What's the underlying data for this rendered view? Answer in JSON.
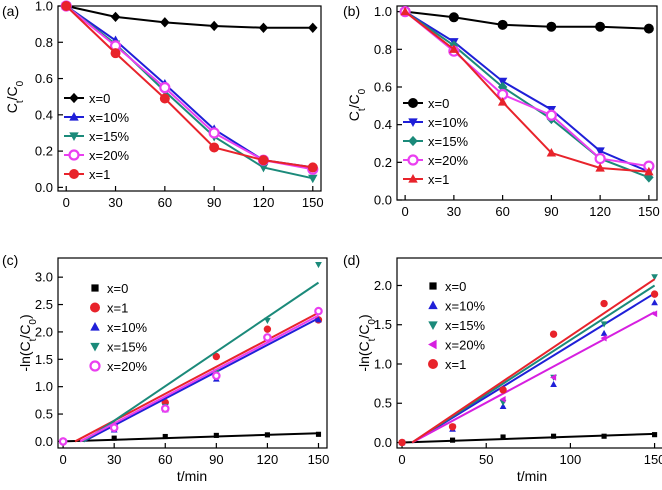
{
  "chart_data": [
    {
      "panel": "(a)",
      "type": "line",
      "x": [
        0,
        30,
        60,
        90,
        120,
        150
      ],
      "xlim": [
        -5,
        155
      ],
      "ylim": [
        -0.02,
        1.0
      ],
      "xticks": [
        "0",
        "30",
        "60",
        "90",
        "120",
        "150"
      ],
      "yticks": [
        "0.0",
        "0.2",
        "0.4",
        "0.6",
        "0.8",
        "1.0"
      ],
      "ytick_values": [
        0,
        0.2,
        0.4,
        0.6,
        0.8,
        1.0
      ],
      "ylabel": "C",
      "ylabel_sub1": "t",
      "ylabel_mid": "/C",
      "ylabel_sub2": "0",
      "xlabel": "",
      "legend_position": "lower-left",
      "series": [
        {
          "name": "x=0",
          "marker": "diamond",
          "color": "#000000",
          "values": [
            1.0,
            0.94,
            0.91,
            0.89,
            0.88,
            0.88
          ]
        },
        {
          "name": "x=10%",
          "marker": "triangle",
          "color": "#1f1fd8",
          "values": [
            1.0,
            0.81,
            0.57,
            0.32,
            0.15,
            0.11
          ]
        },
        {
          "name": "x=15%",
          "marker": "triangle-down",
          "color": "#1b8a7a",
          "values": [
            1.0,
            0.79,
            0.53,
            0.28,
            0.11,
            0.05
          ]
        },
        {
          "name": "x=20%",
          "marker": "circle-open",
          "color": "#ea3ff0",
          "values": [
            1.0,
            0.78,
            0.55,
            0.3,
            0.15,
            0.1
          ]
        },
        {
          "name": "x=1",
          "marker": "circle",
          "color": "#e8232b",
          "values": [
            1.0,
            0.74,
            0.49,
            0.22,
            0.15,
            0.11
          ]
        }
      ]
    },
    {
      "panel": "(b)",
      "type": "line",
      "x": [
        0,
        30,
        60,
        90,
        120,
        150
      ],
      "xlim": [
        -5,
        155
      ],
      "ylim": [
        0,
        1.03
      ],
      "xticks": [
        "0",
        "30",
        "60",
        "90",
        "120",
        "150"
      ],
      "yticks": [
        "0.0",
        "0.2",
        "0.4",
        "0.6",
        "0.8",
        "1.0"
      ],
      "ytick_values": [
        0,
        0.2,
        0.4,
        0.6,
        0.8,
        1.0
      ],
      "ylabel": "C",
      "ylabel_sub1": "t",
      "ylabel_mid": "/C",
      "ylabel_sub2": "0",
      "xlabel": "",
      "legend_position": "lower-left",
      "series": [
        {
          "name": "x=0",
          "marker": "circle",
          "color": "#000000",
          "values": [
            1.0,
            0.97,
            0.93,
            0.92,
            0.92,
            0.91
          ]
        },
        {
          "name": "x=10%",
          "marker": "triangle-down",
          "color": "#1f1fd8",
          "values": [
            1.0,
            0.84,
            0.63,
            0.48,
            0.26,
            0.15
          ]
        },
        {
          "name": "x=15%",
          "marker": "diamond",
          "color": "#1b8a7a",
          "values": [
            1.0,
            0.82,
            0.6,
            0.43,
            0.22,
            0.12
          ]
        },
        {
          "name": "x=20%",
          "marker": "circle-open",
          "color": "#ea3ff0",
          "values": [
            1.0,
            0.79,
            0.56,
            0.45,
            0.22,
            0.18
          ]
        },
        {
          "name": "x=1",
          "marker": "triangle",
          "color": "#e8232b",
          "values": [
            1.0,
            0.8,
            0.52,
            0.25,
            0.17,
            0.15
          ]
        }
      ]
    },
    {
      "panel": "(c)",
      "type": "scatter",
      "xlim": [
        -3,
        155
      ],
      "ylim": [
        -0.12,
        3.35
      ],
      "xticks": [
        "0",
        "30",
        "60",
        "90",
        "120",
        "150"
      ],
      "xtick_values": [
        0,
        30,
        60,
        90,
        120,
        150
      ],
      "yticks": [
        "0.0",
        "0.5",
        "1.0",
        "1.5",
        "2.0",
        "2.5",
        "3.0"
      ],
      "ytick_values": [
        0,
        0.5,
        1.0,
        1.5,
        2.0,
        2.5,
        3.0
      ],
      "xlabel": "t/min",
      "ylabel_prefix": "-ln(C",
      "ylabel_sub1": "t",
      "ylabel_mid": "/C",
      "ylabel_sub2": "0",
      "ylabel_suffix": ")",
      "legend_position": "top-left",
      "series": [
        {
          "name": "x=0",
          "marker": "square",
          "color": "#000000",
          "x": [
            0,
            30,
            60,
            90,
            120,
            150
          ],
          "values": [
            0.0,
            0.06,
            0.09,
            0.11,
            0.12,
            0.13
          ],
          "fit": [
            [
              0,
              0.0
            ],
            [
              150,
              0.15
            ]
          ]
        },
        {
          "name": "x=1",
          "marker": "circle",
          "color": "#e8232b",
          "x": [
            0,
            30,
            60,
            90,
            120,
            150
          ],
          "values": [
            0.0,
            0.3,
            0.71,
            1.55,
            2.05,
            2.22
          ],
          "fit": [
            [
              7,
              0.0
            ],
            [
              150,
              2.35
            ]
          ]
        },
        {
          "name": "x=10%",
          "marker": "triangle",
          "color": "#1f1fd8",
          "x": [
            0,
            30,
            60,
            90,
            120,
            150
          ],
          "values": [
            0.0,
            0.21,
            0.58,
            1.14,
            1.89,
            2.22
          ],
          "fit": [
            [
              12,
              0.0
            ],
            [
              150,
              2.25
            ]
          ]
        },
        {
          "name": "x=15%",
          "marker": "triangle-down",
          "color": "#1b8a7a",
          "x": [
            0,
            30,
            60,
            90,
            120,
            150
          ],
          "values": [
            0.0,
            0.24,
            0.64,
            1.27,
            2.21,
            3.23
          ],
          "fit": [
            [
              12,
              0.0
            ],
            [
              150,
              2.9
            ]
          ]
        },
        {
          "name": "x=20%",
          "marker": "circle-open",
          "color": "#ea3ff0",
          "x": [
            0,
            30,
            60,
            90,
            120,
            150
          ],
          "values": [
            0.0,
            0.25,
            0.6,
            1.2,
            1.9,
            2.38
          ],
          "fit": [
            [
              10,
              0.0
            ],
            [
              150,
              2.3
            ]
          ]
        }
      ]
    },
    {
      "panel": "(d)",
      "type": "scatter",
      "xlim": [
        -3,
        155
      ],
      "ylim": [
        -0.07,
        2.35
      ],
      "xticks": [
        "0",
        "50",
        "100",
        "150"
      ],
      "xtick_values": [
        0,
        50,
        100,
        150
      ],
      "yticks": [
        "0.0",
        "0.5",
        "1.0",
        "1.5",
        "2.0"
      ],
      "ytick_values": [
        0,
        0.5,
        1.0,
        1.5,
        2.0
      ],
      "xlabel": "t/min",
      "ylabel_prefix": "-ln(C",
      "ylabel_sub1": "t",
      "ylabel_mid": "/C",
      "ylabel_sub2": "0",
      "ylabel_suffix": ")",
      "legend_position": "top-left",
      "series": [
        {
          "name": "x=0",
          "marker": "square",
          "color": "#000000",
          "x": [
            0,
            30,
            60,
            90,
            120,
            150
          ],
          "values": [
            0.0,
            0.03,
            0.07,
            0.08,
            0.08,
            0.1
          ],
          "fit": [
            [
              0,
              0.0
            ],
            [
              150,
              0.11
            ]
          ]
        },
        {
          "name": "x=10%",
          "marker": "triangle",
          "color": "#1f1fd8",
          "x": [
            0,
            30,
            60,
            90,
            120,
            150
          ],
          "values": [
            0.0,
            0.17,
            0.46,
            0.74,
            1.39,
            1.78
          ],
          "fit": [
            [
              6,
              0.0
            ],
            [
              150,
              1.9
            ]
          ]
        },
        {
          "name": "x=15%",
          "marker": "triangle-down",
          "color": "#1b8a7a",
          "x": [
            0,
            30,
            60,
            90,
            120,
            150
          ],
          "values": [
            0.0,
            0.2,
            0.51,
            0.83,
            1.51,
            2.11
          ],
          "fit": [
            [
              6,
              0.0
            ],
            [
              150,
              2.0
            ]
          ]
        },
        {
          "name": "x=20%",
          "marker": "triangle-left",
          "color": "#d61fe0",
          "x": [
            0,
            30,
            60,
            90,
            120,
            150
          ],
          "values": [
            0.0,
            0.2,
            0.55,
            0.83,
            1.33,
            1.64
          ],
          "fit": [
            [
              6,
              0.0
            ],
            [
              150,
              1.66
            ]
          ]
        },
        {
          "name": "x=1",
          "marker": "circle",
          "color": "#e8232b",
          "x": [
            0,
            30,
            60,
            90,
            120,
            150
          ],
          "values": [
            0.0,
            0.2,
            0.67,
            1.38,
            1.77,
            1.89
          ],
          "fit": [
            [
              6,
              0.0
            ],
            [
              150,
              2.08
            ]
          ]
        }
      ]
    }
  ]
}
